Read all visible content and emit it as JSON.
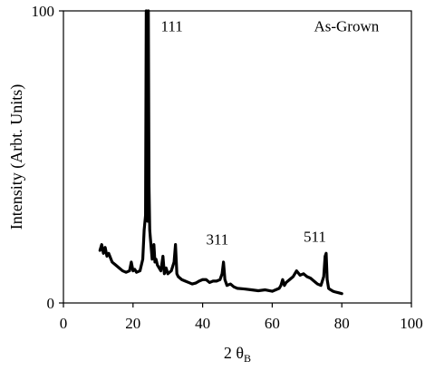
{
  "chart_data": {
    "type": "line",
    "title": "",
    "xlabel": "2 θ",
    "xlabel_subscript": "B",
    "ylabel": "Intensity (Arbt. Units)",
    "xlim": [
      0,
      100
    ],
    "ylim": [
      0,
      100
    ],
    "x_ticks": [
      "0",
      "20",
      "40",
      "60",
      "80",
      "100"
    ],
    "y_ticks": [
      "0",
      "100"
    ],
    "grid": false,
    "legend": "none",
    "series": [
      {
        "color": "#000000",
        "x": [
          10.5,
          11,
          11.5,
          12,
          12.5,
          13,
          14,
          15,
          16,
          17,
          18,
          19,
          19.5,
          20,
          20.5,
          21,
          22,
          22.8,
          23.2,
          23.6,
          23.8,
          24,
          24.2,
          24.4,
          24.6,
          24.8,
          25,
          25.5,
          26,
          26.3,
          26.6,
          27,
          28,
          28.6,
          29,
          29.5,
          30,
          31,
          31.8,
          32.2,
          32.6,
          33,
          34,
          35,
          36,
          37,
          38,
          39,
          40,
          41,
          42,
          43,
          44,
          45,
          45.6,
          46,
          46.4,
          47,
          48,
          49,
          50,
          52,
          54,
          56,
          58,
          60,
          61,
          62,
          62.5,
          63,
          63.5,
          64,
          65,
          66,
          67,
          68,
          69,
          70,
          71,
          72,
          73,
          74,
          74.8,
          75.2,
          75.5,
          75.8,
          76.2,
          76.8,
          77.5,
          78,
          79,
          80
        ],
        "y": [
          18,
          20,
          17,
          19,
          16,
          17,
          14,
          13,
          12,
          11,
          10.5,
          11,
          14,
          11,
          11.5,
          10.5,
          11,
          15,
          25,
          30,
          100,
          35,
          28,
          100,
          40,
          25,
          22,
          15,
          20,
          14,
          15,
          13,
          11,
          16,
          10,
          12,
          10,
          11,
          14,
          20,
          10,
          9,
          8,
          7.5,
          7,
          6.5,
          6.8,
          7.5,
          8,
          8,
          7,
          7.5,
          7.5,
          8,
          10,
          14,
          8,
          6,
          6.5,
          5.5,
          5,
          4.8,
          4.5,
          4.2,
          4.5,
          4,
          4.5,
          5,
          6,
          8,
          6,
          7,
          8,
          9,
          11,
          9.5,
          10,
          9,
          8.5,
          7.5,
          6.5,
          6,
          9,
          16,
          17,
          8,
          5,
          4.5,
          4,
          3.8,
          3.5,
          3.2
        ]
      }
    ],
    "annotations": [
      {
        "text": "111",
        "x": 28,
        "y": 93
      },
      {
        "text": "311",
        "x": 41,
        "y": 20
      },
      {
        "text": "511",
        "x": 69,
        "y": 21
      },
      {
        "text": "As-Grown",
        "x": 72,
        "y": 93
      }
    ]
  }
}
